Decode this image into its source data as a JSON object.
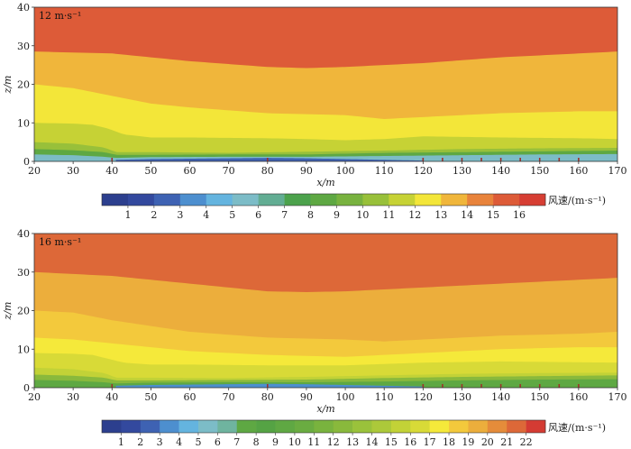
{
  "colors": {
    "cb12": [
      "#2c3f8e",
      "#33499e",
      "#3e62b3",
      "#4d8fcf",
      "#64b4df",
      "#7cbcc7",
      "#62ad93",
      "#4ca24c",
      "#5ea843",
      "#78b23f",
      "#98c03a",
      "#c6d235",
      "#f3e639",
      "#f0b63b",
      "#e8833b",
      "#dd5b38",
      "#d63e33"
    ],
    "cb16": [
      "#2c3f8e",
      "#33499e",
      "#3e62b3",
      "#4d8fcf",
      "#64b4df",
      "#7cbcc7",
      "#6fb49f",
      "#5ea843",
      "#55a344",
      "#5fa843",
      "#6aac41",
      "#79b33e",
      "#89b93c",
      "#9ac23b",
      "#acc93a",
      "#c2d237",
      "#d8da37",
      "#f5e93a",
      "#f3c93c",
      "#ecae3c",
      "#e58c3a",
      "#dd6838",
      "#d43b33"
    ]
  },
  "chart_data": [
    {
      "type": "heatmap",
      "annotation": "12 m·s⁻¹",
      "xlabel": "x/m",
      "ylabel": "z/m",
      "xlim": [
        20,
        170
      ],
      "ylim": [
        0,
        40
      ],
      "xticks": [
        20,
        30,
        40,
        50,
        60,
        70,
        80,
        90,
        100,
        110,
        120,
        130,
        140,
        150,
        160,
        170
      ],
      "yticks": [
        0,
        10,
        20,
        30,
        40
      ],
      "colorbar_label": "风速/(m·s⁻¹)",
      "colorbar_ticks": [
        1,
        2,
        3,
        4,
        5,
        6,
        7,
        8,
        9,
        10,
        11,
        12,
        13,
        14,
        15,
        16
      ],
      "contour_levels": [
        {
          "level": 15,
          "x": [
            20,
            40,
            60,
            80,
            90,
            100,
            120,
            140,
            160,
            170
          ],
          "z": [
            28.5,
            28,
            26,
            24.5,
            24.2,
            24.5,
            25.5,
            27,
            28,
            28.5
          ]
        },
        {
          "level": 14,
          "x": [
            20,
            30,
            40,
            50,
            60,
            80,
            100,
            110,
            120,
            140,
            160,
            170
          ],
          "z": [
            20,
            19,
            17,
            15,
            14,
            12.5,
            12,
            11,
            11.5,
            12.5,
            13,
            13
          ]
        },
        {
          "level": 13,
          "x": [
            20,
            30,
            35,
            39,
            43,
            50,
            60,
            80,
            90,
            100,
            110,
            120,
            140,
            160,
            170
          ],
          "z": [
            10,
            9.8,
            9.5,
            8.5,
            7,
            6.2,
            6.2,
            6,
            5.8,
            5.5,
            5.8,
            6.5,
            6.2,
            6,
            5.8
          ]
        },
        {
          "level": 12,
          "x": [
            20,
            30,
            38,
            41,
            50,
            70,
            90,
            110,
            130,
            150,
            170
          ],
          "z": [
            5,
            4.6,
            3.6,
            2.4,
            2.4,
            2.2,
            2.5,
            2.8,
            3.2,
            3.4,
            3.5
          ]
        },
        {
          "level": 10,
          "x": [
            20,
            30,
            38,
            41,
            50,
            70,
            90,
            110,
            130,
            150,
            170
          ],
          "z": [
            3.2,
            2.9,
            2.4,
            1.7,
            1.7,
            1.8,
            1.8,
            2.2,
            2.4,
            2.6,
            2.8
          ]
        },
        {
          "level": 7,
          "x": [
            20,
            30,
            38,
            41,
            50,
            70,
            90,
            110,
            130,
            150,
            170
          ],
          "z": [
            1.8,
            1.6,
            1.2,
            0.9,
            1.1,
            1.2,
            1.2,
            1.4,
            1.6,
            1.8,
            1.9
          ]
        },
        {
          "level": 4,
          "x": [
            41,
            50,
            70,
            80,
            90,
            100,
            110,
            120
          ],
          "z": [
            0.4,
            0.6,
            0.8,
            0.9,
            0.8,
            0.6,
            0.4,
            0.2
          ]
        }
      ],
      "roughness_markers_x": [
        40,
        80,
        120,
        125,
        130,
        135,
        140,
        145,
        150,
        155,
        160
      ]
    },
    {
      "type": "heatmap",
      "annotation": "16 m·s⁻¹",
      "xlabel": "x/m",
      "ylabel": "z/m",
      "xlim": [
        20,
        170
      ],
      "ylim": [
        0,
        40
      ],
      "xticks": [
        20,
        30,
        40,
        50,
        60,
        70,
        80,
        90,
        100,
        110,
        120,
        130,
        140,
        150,
        160,
        170
      ],
      "yticks": [
        0,
        10,
        20,
        30,
        40
      ],
      "colorbar_label": "风速/(m·s⁻¹)",
      "colorbar_ticks": [
        1,
        2,
        3,
        4,
        5,
        6,
        7,
        8,
        9,
        10,
        11,
        12,
        13,
        14,
        15,
        16,
        17,
        18,
        19,
        20,
        21,
        22
      ],
      "contour_levels": [
        {
          "level": 21,
          "x": [
            20,
            40,
            60,
            80,
            90,
            100,
            120,
            140,
            160,
            170
          ],
          "z": [
            30,
            29,
            27,
            25,
            24.8,
            25,
            26,
            27,
            28,
            28.5
          ]
        },
        {
          "level": 20,
          "x": [
            20,
            30,
            40,
            50,
            60,
            80,
            100,
            110,
            120,
            140,
            160,
            170
          ],
          "z": [
            20,
            19.5,
            17.5,
            16,
            14.5,
            13,
            12.5,
            12,
            12.5,
            13.5,
            14,
            14.5
          ]
        },
        {
          "level": 19,
          "x": [
            20,
            30,
            40,
            60,
            80,
            100,
            120,
            140,
            160,
            170
          ],
          "z": [
            13,
            12.5,
            11.5,
            9.5,
            8.5,
            8,
            9,
            10,
            10.5,
            10.5
          ]
        },
        {
          "level": 18,
          "x": [
            20,
            30,
            35,
            39,
            43,
            50,
            60,
            80,
            100,
            120,
            140,
            160,
            170
          ],
          "z": [
            9,
            8.8,
            8.5,
            7.5,
            6.5,
            6,
            6,
            5.8,
            5.8,
            6.5,
            6.8,
            6.6,
            6.5
          ]
        },
        {
          "level": 17,
          "x": [
            20,
            30,
            38,
            41,
            50,
            70,
            90,
            110,
            130,
            150,
            170
          ],
          "z": [
            5.2,
            4.8,
            3.8,
            2.6,
            2.6,
            2.5,
            2.8,
            3.2,
            3.6,
            3.8,
            3.9
          ]
        },
        {
          "level": 14,
          "x": [
            20,
            30,
            38,
            41,
            50,
            70,
            90,
            110,
            130,
            150,
            170
          ],
          "z": [
            3.4,
            3.1,
            2.6,
            1.9,
            1.9,
            2,
            2.1,
            2.5,
            2.8,
            3,
            3.2
          ]
        },
        {
          "level": 9,
          "x": [
            20,
            30,
            38,
            41,
            50,
            70,
            90,
            110,
            130,
            150,
            170
          ],
          "z": [
            2,
            1.8,
            1.4,
            1.1,
            1.3,
            1.4,
            1.4,
            1.6,
            1.9,
            2.1,
            2.2
          ]
        },
        {
          "level": 5,
          "x": [
            41,
            50,
            70,
            80,
            90,
            100,
            110,
            120
          ],
          "z": [
            0.5,
            0.7,
            0.9,
            1,
            0.9,
            0.7,
            0.5,
            0.3
          ]
        }
      ],
      "roughness_markers_x": [
        40,
        80,
        120,
        125,
        130,
        135,
        140,
        145,
        150,
        155,
        160
      ]
    }
  ]
}
